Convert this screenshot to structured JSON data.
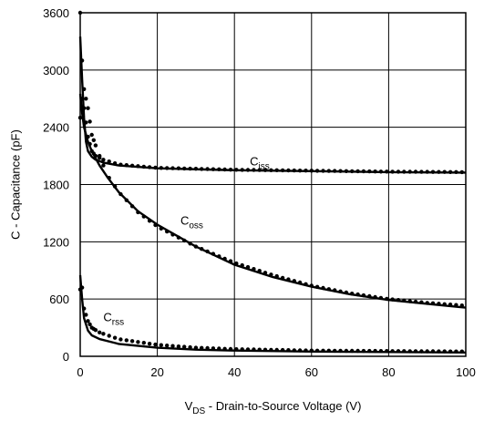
{
  "chart_data": {
    "type": "line",
    "title": "",
    "xlabel": {
      "prefix": "V",
      "sub": "DS",
      "suffix": " - Drain-to-Source Voltage (V)"
    },
    "ylabel": "C - Capacitance (pF)",
    "xlim": [
      0,
      100
    ],
    "ylim": [
      0,
      3600
    ],
    "x_ticks": [
      0,
      20,
      40,
      60,
      80,
      100
    ],
    "y_ticks": [
      0,
      600,
      1200,
      1800,
      2400,
      3000,
      3600
    ],
    "grid": true,
    "series": [
      {
        "name": "Ciss",
        "label": {
          "main": "C",
          "sub": "iss"
        },
        "label_at": [
          44,
          2000
        ],
        "style": "solid",
        "x": [
          0,
          0.5,
          1,
          1.5,
          2,
          3,
          4,
          6,
          10,
          20,
          40,
          60,
          80,
          100
        ],
        "y": [
          3350,
          2900,
          2500,
          2250,
          2150,
          2090,
          2060,
          2030,
          2000,
          1970,
          1950,
          1940,
          1930,
          1925
        ]
      },
      {
        "name": "Ciss (dotted)",
        "style": "dotted",
        "x": [
          0,
          0.5,
          1,
          2,
          3,
          4,
          6,
          10,
          20,
          40,
          60,
          80,
          100
        ],
        "y": [
          2500,
          2700,
          2600,
          2300,
          2150,
          2100,
          2060,
          2010,
          1975,
          1955,
          1945,
          1935,
          1930
        ]
      },
      {
        "name": "Coss",
        "label": {
          "main": "C",
          "sub": "oss"
        },
        "label_at": [
          26,
          1380
        ],
        "style": "solid",
        "x": [
          0,
          0.5,
          1,
          2,
          3,
          5,
          7,
          10,
          15,
          20,
          30,
          40,
          50,
          60,
          70,
          80,
          90,
          100
        ],
        "y": [
          2750,
          2550,
          2400,
          2250,
          2150,
          2000,
          1880,
          1720,
          1520,
          1380,
          1150,
          960,
          830,
          730,
          650,
          590,
          550,
          510
        ]
      },
      {
        "name": "Coss (dotted)",
        "style": "dotted",
        "x": [
          0,
          0.5,
          1,
          2,
          3,
          5,
          7,
          10,
          15,
          20,
          30,
          40,
          50,
          60,
          70,
          80,
          90,
          100
        ],
        "y": [
          3600,
          3100,
          2800,
          2600,
          2320,
          2100,
          1900,
          1720,
          1510,
          1360,
          1150,
          980,
          850,
          740,
          660,
          600,
          560,
          530
        ]
      },
      {
        "name": "Crss",
        "label": {
          "main": "C",
          "sub": "rss"
        },
        "label_at": [
          6,
          370
        ],
        "style": "solid",
        "x": [
          0,
          0.5,
          1,
          2,
          3,
          5,
          10,
          20,
          30,
          40,
          60,
          80,
          100
        ],
        "y": [
          850,
          600,
          400,
          270,
          220,
          180,
          130,
          90,
          70,
          60,
          50,
          45,
          40
        ]
      },
      {
        "name": "Crss (dotted)",
        "style": "dotted",
        "x": [
          0,
          0.5,
          1,
          2,
          3,
          5,
          10,
          20,
          30,
          40,
          60,
          80,
          100
        ],
        "y": [
          700,
          720,
          500,
          370,
          300,
          250,
          180,
          120,
          90,
          75,
          60,
          55,
          50
        ]
      }
    ]
  }
}
